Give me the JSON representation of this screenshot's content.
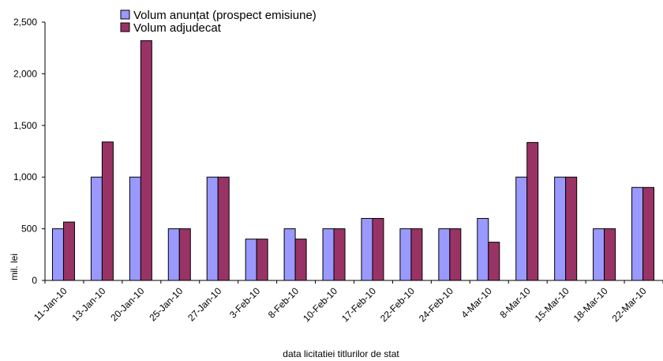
{
  "chart_data": {
    "type": "bar",
    "title": "",
    "xlabel": "data  licitatiei  titlurilor de stat",
    "ylabel": "mil. lei",
    "ylim": [
      0,
      2500
    ],
    "yticks": [
      "0",
      "500",
      "1,000",
      "1,500",
      "2,000",
      "2,500"
    ],
    "ytick_values": [
      0,
      500,
      1000,
      1500,
      2000,
      2500
    ],
    "grid": false,
    "legend_position": "top-left",
    "categories": [
      "11-Jan-10",
      "13-Jan-10",
      "20-Jan-10",
      "25-Jan-10",
      "27-Jan-10",
      "3-Feb-10",
      "8-Feb-10",
      "10-Feb-10",
      "17-Feb-10",
      "22-Feb-10",
      "24-Feb-10",
      "4-Mar-10",
      "8-Mar-10",
      "15-Mar-10",
      "18-Mar-10",
      "22-Mar-10"
    ],
    "series": [
      {
        "name": "Volum anunțat (prospect emisiune)",
        "color": "#9999ff",
        "values": [
          500,
          1000,
          1000,
          500,
          1000,
          400,
          500,
          500,
          600,
          500,
          500,
          600,
          1000,
          1000,
          500,
          900
        ]
      },
      {
        "name": "Volum adjudecat",
        "color": "#993366",
        "values": [
          565,
          1340,
          2320,
          500,
          1000,
          400,
          400,
          500,
          600,
          500,
          500,
          370,
          1335,
          1000,
          500,
          900
        ]
      }
    ]
  }
}
